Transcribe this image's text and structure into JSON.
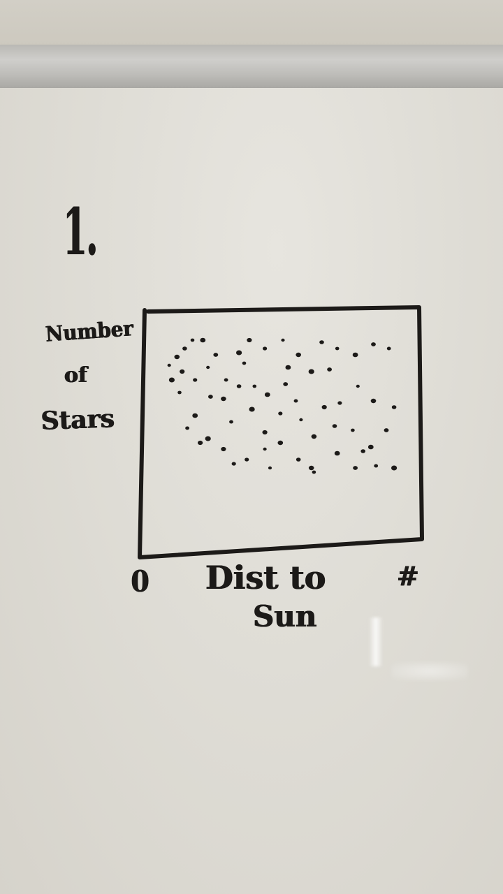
{
  "board": {
    "number": "1.",
    "y_label_lines": [
      "Number",
      "of",
      "Stars"
    ],
    "x_start": "0",
    "x_label_lines": [
      "Dist to",
      "Sun"
    ],
    "x_end": "#"
  },
  "chart_data": {
    "type": "scatter",
    "xlabel": "Dist to Sun",
    "ylabel": "Number of Stars",
    "x_ticks": [
      "0",
      "#"
    ],
    "ink_color": "#1c1a18",
    "grid": false,
    "points": [
      [
        0.06,
        0.21
      ],
      [
        0.09,
        0.17
      ],
      [
        0.12,
        0.13
      ],
      [
        0.15,
        0.09
      ],
      [
        0.19,
        0.09
      ],
      [
        0.24,
        0.16
      ],
      [
        0.28,
        0.28
      ],
      [
        0.33,
        0.15
      ],
      [
        0.37,
        0.09
      ],
      [
        0.43,
        0.13
      ],
      [
        0.5,
        0.09
      ],
      [
        0.56,
        0.16
      ],
      [
        0.65,
        0.1
      ],
      [
        0.71,
        0.13
      ],
      [
        0.78,
        0.16
      ],
      [
        0.85,
        0.11
      ],
      [
        0.91,
        0.13
      ],
      [
        0.07,
        0.28
      ],
      [
        0.11,
        0.24
      ],
      [
        0.16,
        0.28
      ],
      [
        0.21,
        0.22
      ],
      [
        0.27,
        0.37
      ],
      [
        0.33,
        0.31
      ],
      [
        0.39,
        0.31
      ],
      [
        0.44,
        0.35
      ],
      [
        0.51,
        0.3
      ],
      [
        0.55,
        0.38
      ],
      [
        0.61,
        0.24
      ],
      [
        0.66,
        0.41
      ],
      [
        0.72,
        0.39
      ],
      [
        0.79,
        0.31
      ],
      [
        0.85,
        0.38
      ],
      [
        0.93,
        0.41
      ],
      [
        0.1,
        0.34
      ],
      [
        0.16,
        0.45
      ],
      [
        0.22,
        0.36
      ],
      [
        0.3,
        0.48
      ],
      [
        0.38,
        0.42
      ],
      [
        0.43,
        0.53
      ],
      [
        0.49,
        0.44
      ],
      [
        0.57,
        0.47
      ],
      [
        0.62,
        0.55
      ],
      [
        0.7,
        0.5
      ],
      [
        0.77,
        0.52
      ],
      [
        0.84,
        0.6
      ],
      [
        0.9,
        0.52
      ],
      [
        0.13,
        0.51
      ],
      [
        0.21,
        0.56
      ],
      [
        0.27,
        0.61
      ],
      [
        0.36,
        0.66
      ],
      [
        0.43,
        0.61
      ],
      [
        0.49,
        0.58
      ],
      [
        0.56,
        0.66
      ],
      [
        0.62,
        0.72
      ],
      [
        0.71,
        0.63
      ],
      [
        0.78,
        0.7
      ],
      [
        0.86,
        0.69
      ],
      [
        0.93,
        0.7
      ],
      [
        0.18,
        0.58
      ],
      [
        0.31,
        0.68
      ],
      [
        0.45,
        0.7
      ],
      [
        0.61,
        0.7
      ],
      [
        0.81,
        0.62
      ],
      [
        0.35,
        0.2
      ],
      [
        0.52,
        0.22
      ],
      [
        0.68,
        0.23
      ]
    ]
  }
}
